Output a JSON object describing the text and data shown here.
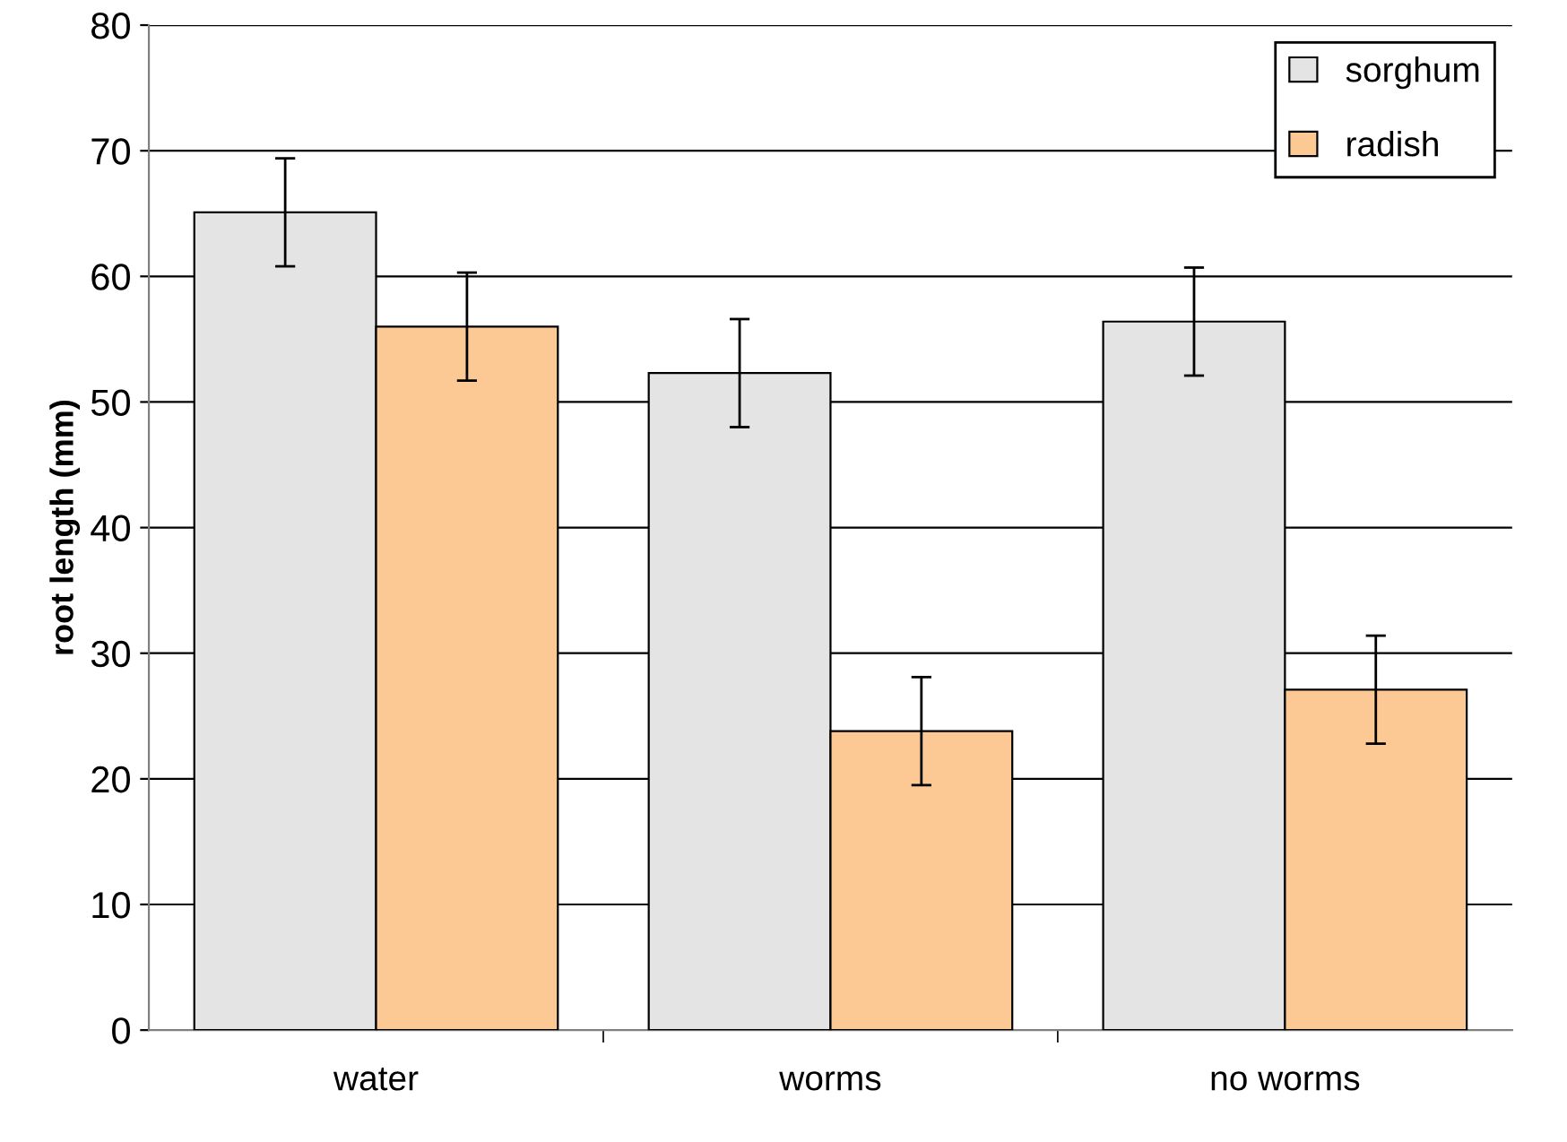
{
  "chart_data": {
    "type": "bar",
    "ylabel": "root length (mm)",
    "categories": [
      "water",
      "worms",
      "no worms"
    ],
    "series": [
      {
        "name": "sorghum",
        "color": "#e4e4e4",
        "values": [
          65.1,
          52.3,
          56.4
        ],
        "errors": [
          4.3,
          4.3,
          4.3
        ]
      },
      {
        "name": "radish",
        "color": "#fcc994",
        "values": [
          56.0,
          23.8,
          27.1
        ],
        "errors": [
          4.3,
          4.3,
          4.3
        ]
      }
    ],
    "ylim": [
      0,
      80
    ],
    "yticks": [
      0,
      10,
      20,
      30,
      40,
      50,
      60,
      70,
      80
    ],
    "grid": "y",
    "legend": "top right"
  }
}
